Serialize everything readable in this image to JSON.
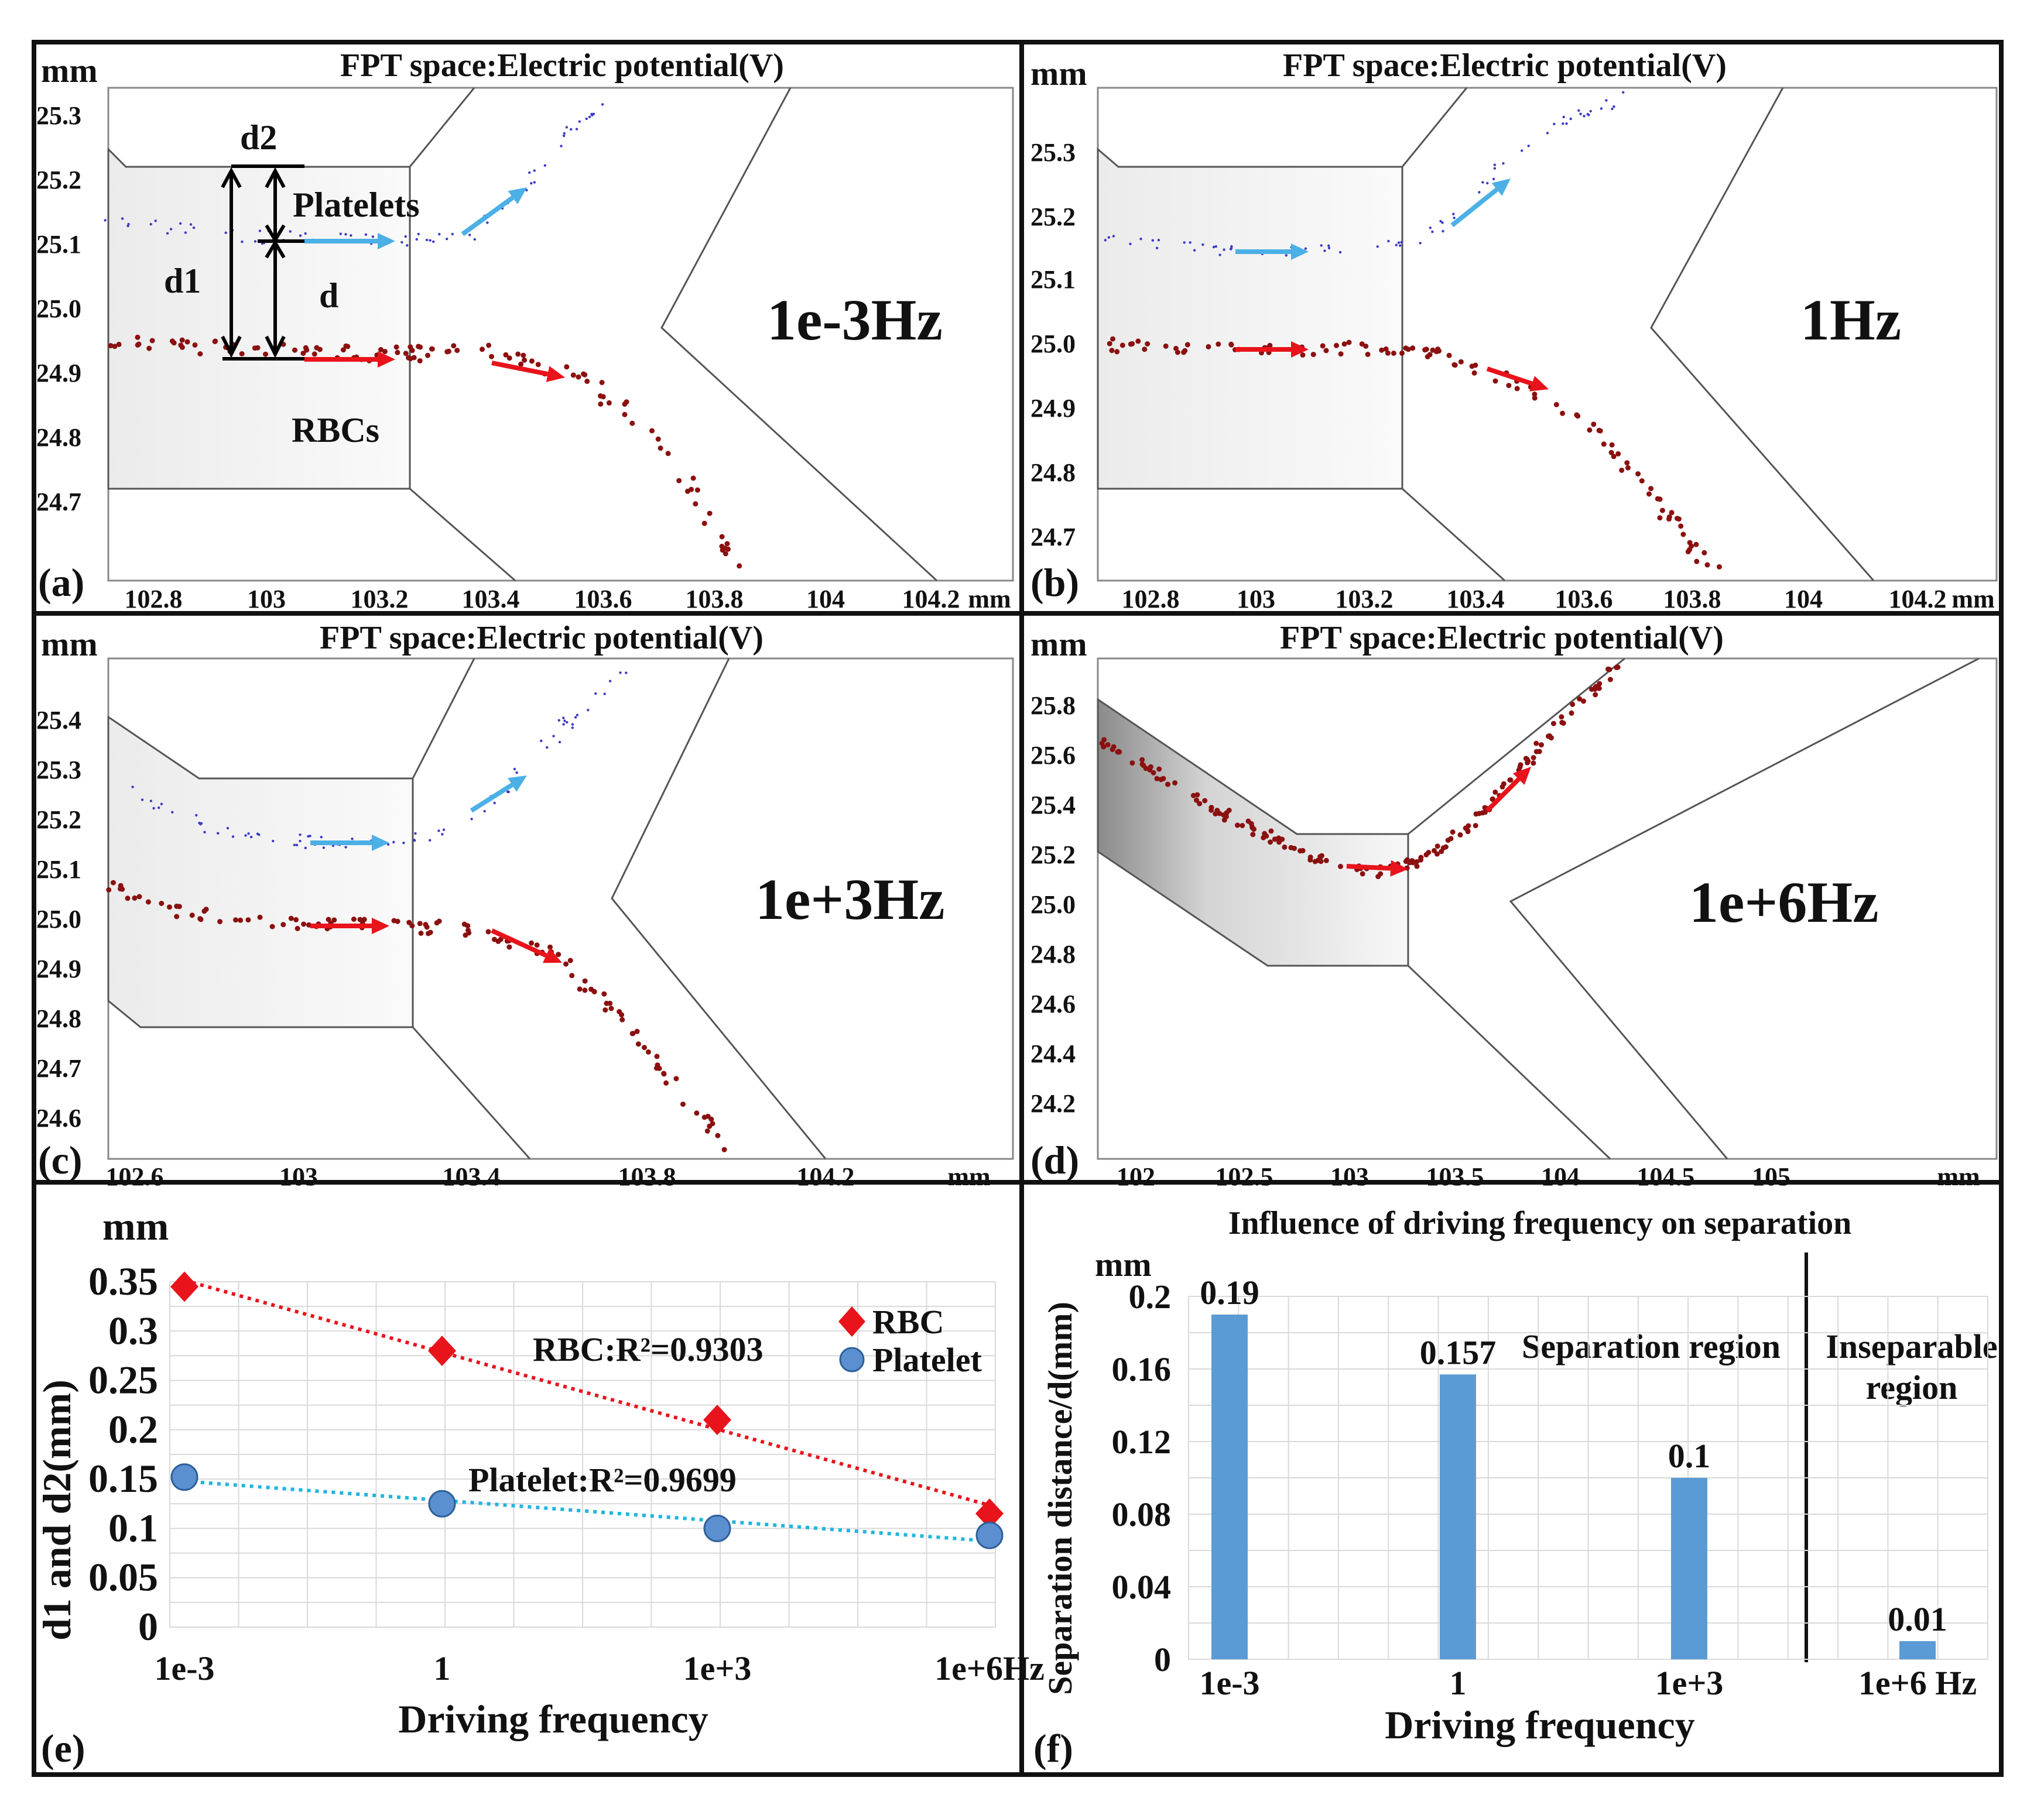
{
  "panels": [
    {
      "label": "(a)",
      "title": "FPT space:Electric potential(V)",
      "unit_y": "mm",
      "unit_x": "mm",
      "freq_label": "1e-3Hz",
      "x_ticks": [
        "102.8",
        "103",
        "103.2",
        "103.4",
        "103.6",
        "103.8",
        "104",
        "104.2"
      ],
      "y_ticks": [
        "25.3",
        "25.2",
        "25.1",
        "25.0",
        "24.9",
        "24.8",
        "24.7"
      ],
      "annotations": {
        "d1": "d1",
        "d2": "d2",
        "d": "d",
        "platelets": "Platelets",
        "rbcs": "RBCs"
      }
    },
    {
      "label": "(b)",
      "title": "FPT space:Electric potential(V)",
      "unit_y": "mm",
      "unit_x": "mm",
      "freq_label": "1Hz",
      "x_ticks": [
        "102.8",
        "103",
        "103.2",
        "103.4",
        "103.6",
        "103.8",
        "104",
        "104.2"
      ],
      "y_ticks": [
        "25.3",
        "25.2",
        "25.1",
        "25.0",
        "24.9",
        "24.8",
        "24.7"
      ]
    },
    {
      "label": "(c)",
      "title": "FPT space:Electric potential(V)",
      "unit_y": "mm",
      "unit_x": "mm",
      "freq_label": "1e+3Hz",
      "x_ticks": [
        "102.6",
        "103",
        "103.4",
        "103.8",
        "104.2"
      ],
      "y_ticks": [
        "25.4",
        "25.3",
        "25.2",
        "25.1",
        "25.0",
        "24.9",
        "24.8",
        "24.7",
        "24.6"
      ]
    },
    {
      "label": "(d)",
      "title": "FPT space:Electric potential(V)",
      "unit_y": "mm",
      "unit_x": "mm",
      "freq_label": "1e+6Hz",
      "x_ticks": [
        "102",
        "102.5",
        "103",
        "103.5",
        "104",
        "104.5",
        "105"
      ],
      "y_ticks": [
        "25.8",
        "25.6",
        "25.4",
        "25.2",
        "25.0",
        "24.8",
        "24.6",
        "24.4",
        "24.2"
      ]
    }
  ],
  "chart_data": [
    {
      "label": "(e)",
      "type": "scatter",
      "unit": "mm",
      "ylabel": "d1 and d2(mm)",
      "xlabel": "Driving frequency",
      "categories": [
        "1e-3",
        "1",
        "1e+3",
        "1e+6Hz"
      ],
      "ylim": [
        0,
        0.35
      ],
      "y_ticks": [
        "0.35",
        "0.3",
        "0.25",
        "0.2",
        "0.15",
        "0.1",
        "0.05",
        "0"
      ],
      "series": [
        {
          "name": "RBC",
          "values": [
            0.345,
            0.28,
            0.21,
            0.115
          ],
          "color": "#e8131b",
          "marker": "diamond",
          "trend": "RBC:R²=0.9303"
        },
        {
          "name": "Platelet",
          "values": [
            0.152,
            0.125,
            0.1,
            0.093
          ],
          "color": "#5b8fcf",
          "marker": "circle",
          "trend": "Platelet:R²=0.9699"
        }
      ],
      "grid": true,
      "legend": "right"
    },
    {
      "label": "(f)",
      "type": "bar",
      "title": "Influence of driving frequency on separation",
      "unit": "mm",
      "ylabel": "Separation distance/d(mm)",
      "xlabel": "Driving frequency",
      "categories": [
        "1e-3",
        "1",
        "1e+3",
        "1e+6 Hz"
      ],
      "values": [
        0.19,
        0.157,
        0.1,
        0.01
      ],
      "data_labels": [
        "0.19",
        "0.157",
        "0.1",
        "0.01"
      ],
      "ylim": [
        0,
        0.2
      ],
      "y_ticks": [
        "0.2",
        "0.16",
        "0.12",
        "0.08",
        "0.04",
        "0"
      ],
      "regions": [
        "Separation region",
        "Inseparable region"
      ],
      "bar_color": "#5b9bd5",
      "grid": true
    }
  ],
  "colors": {
    "rbc": "#8b1010",
    "platelet": "#3b3bc8",
    "arrow_red": "#e8131b",
    "arrow_blue": "#4bb0e6"
  }
}
